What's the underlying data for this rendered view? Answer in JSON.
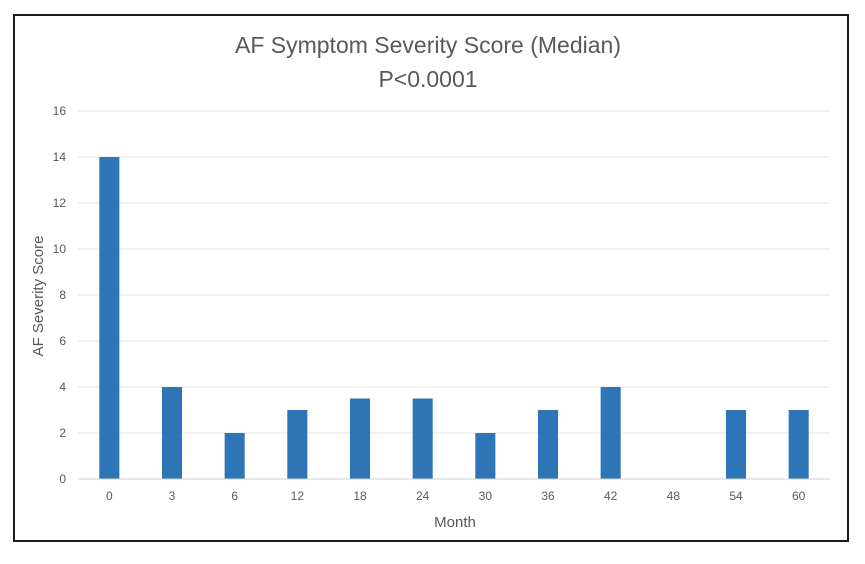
{
  "chart_data": {
    "type": "bar",
    "title": "AF Symptom Severity Score (Median)",
    "subtitle": "P<0.0001",
    "xlabel": "Month",
    "ylabel": "AF Severity Score",
    "categories": [
      "0",
      "3",
      "6",
      "12",
      "18",
      "24",
      "30",
      "36",
      "42",
      "48",
      "54",
      "60"
    ],
    "values": [
      14,
      4,
      2,
      3,
      3.5,
      3.5,
      2,
      3,
      4,
      0,
      3,
      3
    ],
    "ylim": [
      0,
      16
    ],
    "yticks": [
      "0",
      "2",
      "4",
      "6",
      "8",
      "10",
      "12",
      "14",
      "16"
    ],
    "grid": true,
    "legend": "none",
    "bar_color": "#2e75b6"
  }
}
